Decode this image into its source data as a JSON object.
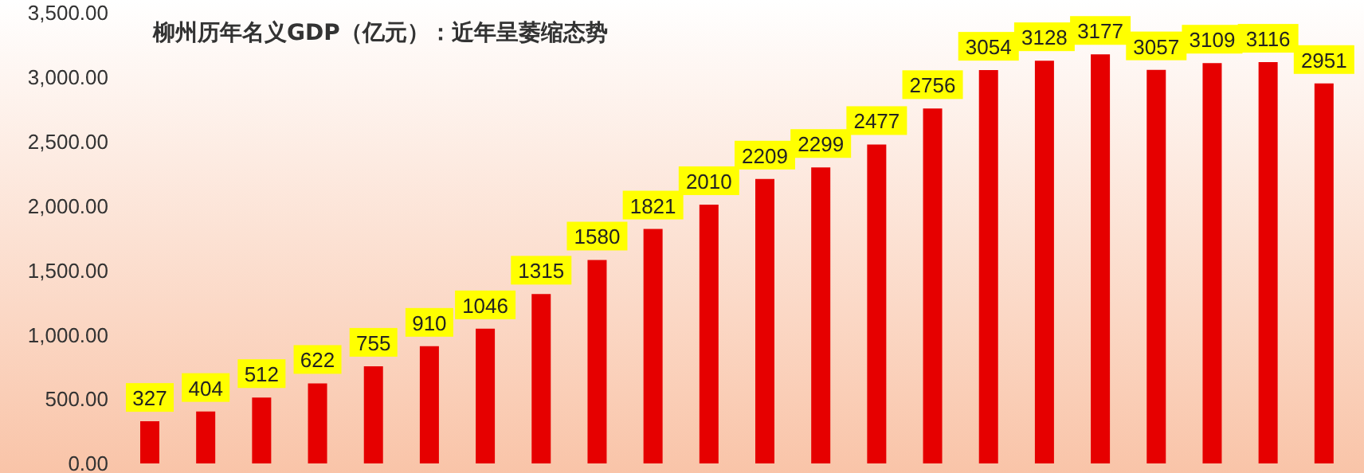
{
  "chart_data": {
    "type": "bar",
    "title": "柳州历年名义GDP（亿元）：近年呈萎缩态势",
    "categories": [
      null,
      null,
      null,
      null,
      null,
      null,
      null,
      null,
      null,
      null,
      null,
      null,
      null,
      null,
      null,
      null,
      null,
      null,
      null,
      null,
      null,
      null
    ],
    "values": [
      327,
      404,
      512,
      622,
      755,
      910,
      1046,
      1315,
      1580,
      1821,
      2010,
      2209,
      2299,
      2477,
      2756,
      3054,
      3128,
      3177,
      3057,
      3109,
      3116,
      2951
    ],
    "color": "#e60000",
    "ylim": [
      0,
      3500
    ],
    "yticks": [
      {
        "value": 0,
        "label": "0.00"
      },
      {
        "value": 500,
        "label": "500.00"
      },
      {
        "value": 1000,
        "label": "1,000.00"
      },
      {
        "value": 1500,
        "label": "1,500.00"
      },
      {
        "value": 2000,
        "label": "2,000.00"
      },
      {
        "value": 2500,
        "label": "2,500.00"
      },
      {
        "value": 3000,
        "label": "3,000.00"
      },
      {
        "value": 3500,
        "label": "3,500.00"
      }
    ],
    "grid": false,
    "legend": false,
    "data_labels": true
  }
}
